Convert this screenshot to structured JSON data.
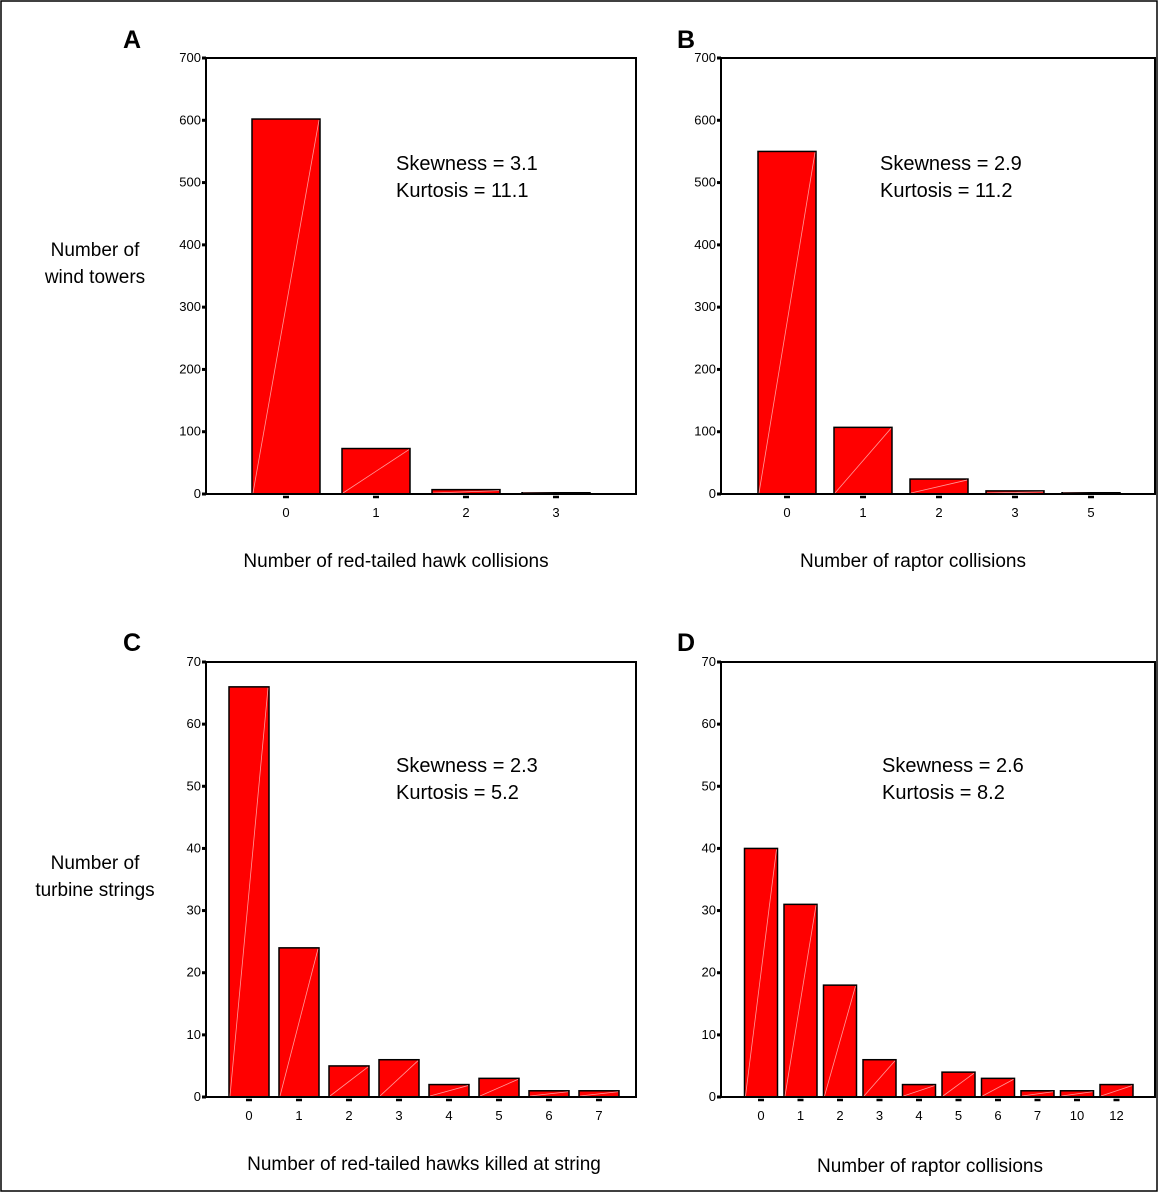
{
  "chart_data": [
    {
      "type": "bar",
      "panel": "A",
      "categories": [
        "0",
        "1",
        "2",
        "3"
      ],
      "values": [
        602,
        73,
        7,
        2
      ],
      "xlabel": "Number of red-tailed hawk collisions",
      "ylabel": [
        "Number of",
        "wind towers"
      ],
      "ylim": [
        0,
        700
      ],
      "yticks": [
        "0",
        "100",
        "200",
        "300",
        "400",
        "500",
        "600",
        "700"
      ],
      "annotations": [
        "Skewness = 3.1",
        "Kurtosis = 11.1"
      ]
    },
    {
      "type": "bar",
      "panel": "B",
      "categories": [
        "0",
        "1",
        "2",
        "3",
        "5"
      ],
      "values": [
        550,
        107,
        24,
        5,
        2
      ],
      "xlabel": "Number of raptor collisions",
      "ylabel": [
        "",
        ""
      ],
      "ylim": [
        0,
        700
      ],
      "yticks": [
        "0",
        "100",
        "200",
        "300",
        "400",
        "500",
        "600",
        "700"
      ],
      "annotations": [
        "Skewness = 2.9",
        "Kurtosis = 11.2"
      ]
    },
    {
      "type": "bar",
      "panel": "C",
      "categories": [
        "0",
        "1",
        "2",
        "3",
        "4",
        "5",
        "6",
        "7"
      ],
      "values": [
        66,
        24,
        5,
        6,
        2,
        3,
        1,
        1
      ],
      "xlabel": "Number of red-tailed hawks killed at string",
      "ylabel": [
        "Number of",
        "turbine strings"
      ],
      "ylim": [
        0,
        70
      ],
      "yticks": [
        "0",
        "10",
        "20",
        "30",
        "40",
        "50",
        "60",
        "70"
      ],
      "annotations": [
        "Skewness = 2.3",
        "Kurtosis = 5.2"
      ]
    },
    {
      "type": "bar",
      "panel": "D",
      "categories": [
        "0",
        "1",
        "2",
        "3",
        "4",
        "5",
        "6",
        "7",
        "10",
        "12"
      ],
      "values": [
        40,
        31,
        18,
        6,
        2,
        4,
        3,
        1,
        1,
        2
      ],
      "xlabel": "Number of raptor collisions",
      "ylabel": [
        "",
        ""
      ],
      "ylim": [
        0,
        70
      ],
      "yticks": [
        "0",
        "10",
        "20",
        "30",
        "40",
        "50",
        "60",
        "70"
      ],
      "annotations": [
        "Skewness = 2.6",
        "Kurtosis = 8.2"
      ]
    }
  ],
  "colors": {
    "bar": "#ff0000",
    "outline": "#000000"
  }
}
